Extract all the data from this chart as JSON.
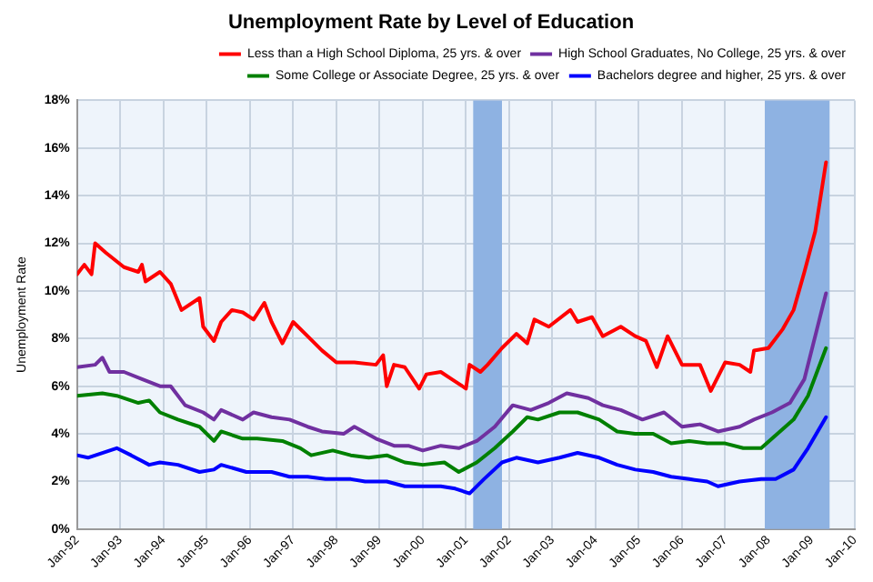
{
  "chart_data": {
    "type": "line",
    "title": "Unemployment Rate by Level of Education",
    "ylabel": "Unemployment Rate",
    "xlim": [
      "1992-01",
      "2010-01"
    ],
    "xticks": [
      {
        "value": "1992-01",
        "label": "Jan-92"
      },
      {
        "value": "1993-01",
        "label": "Jan-93"
      },
      {
        "value": "1994-01",
        "label": "Jan-94"
      },
      {
        "value": "1995-01",
        "label": "Jan-95"
      },
      {
        "value": "1996-01",
        "label": "Jan-96"
      },
      {
        "value": "1997-01",
        "label": "Jan-97"
      },
      {
        "value": "1998-01",
        "label": "Jan-98"
      },
      {
        "value": "1999-01",
        "label": "Jan-99"
      },
      {
        "value": "2000-01",
        "label": "Jan-00"
      },
      {
        "value": "2001-01",
        "label": "Jan-01"
      },
      {
        "value": "2002-01",
        "label": "Jan-02"
      },
      {
        "value": "2003-01",
        "label": "Jan-03"
      },
      {
        "value": "2004-01",
        "label": "Jan-04"
      },
      {
        "value": "2005-01",
        "label": "Jan-05"
      },
      {
        "value": "2006-01",
        "label": "Jan-06"
      },
      {
        "value": "2007-01",
        "label": "Jan-07"
      },
      {
        "value": "2008-01",
        "label": "Jan-08"
      },
      {
        "value": "2009-01",
        "label": "Jan-09"
      },
      {
        "value": "2010-01",
        "label": "Jan-10"
      }
    ],
    "ylim": [
      0,
      18
    ],
    "yticks": [
      {
        "value": 0,
        "label": "0%"
      },
      {
        "value": 2,
        "label": "2%"
      },
      {
        "value": 4,
        "label": "4%"
      },
      {
        "value": 6,
        "label": "6%"
      },
      {
        "value": 8,
        "label": "8%"
      },
      {
        "value": 10,
        "label": "10%"
      },
      {
        "value": 12,
        "label": "12%"
      },
      {
        "value": 14,
        "label": "14%"
      },
      {
        "value": 16,
        "label": "16%"
      },
      {
        "value": 18,
        "label": "18%"
      }
    ],
    "grid": true,
    "legend": "top right",
    "marker": "none",
    "line_style": "solid",
    "bands": [
      {
        "axis": "x",
        "from": "2001-03",
        "to": "2001-11",
        "color": "#8eb2e2"
      },
      {
        "axis": "x",
        "from": "2007-12",
        "to": "2009-06",
        "color": "#8eb2e2"
      }
    ],
    "series": [
      {
        "name": "Less than a High School Diploma, 25 yrs. & over",
        "color": "#ff0000",
        "x": [
          "1992-01",
          "1992-03",
          "1992-05",
          "1992-06",
          "1992-09",
          "1993-02",
          "1993-06",
          "1993-07",
          "1993-08",
          "1993-12",
          "1994-03",
          "1994-06",
          "1994-11",
          "1994-12",
          "1995-03",
          "1995-05",
          "1995-08",
          "1995-11",
          "1996-02",
          "1996-05",
          "1996-07",
          "1996-10",
          "1997-01",
          "1997-05",
          "1997-09",
          "1998-01",
          "1998-06",
          "1998-12",
          "1999-02",
          "1999-03",
          "1999-05",
          "1999-08",
          "1999-12",
          "2000-02",
          "2000-06",
          "2000-09",
          "2001-01",
          "2001-02",
          "2001-05",
          "2001-07",
          "2001-11",
          "2002-03",
          "2002-06",
          "2002-08",
          "2002-12",
          "2003-06",
          "2003-08",
          "2003-12",
          "2004-03",
          "2004-08",
          "2004-12",
          "2005-03",
          "2005-06",
          "2005-09",
          "2006-01",
          "2006-06",
          "2006-09",
          "2007-01",
          "2007-05",
          "2007-08",
          "2007-09",
          "2008-01",
          "2008-05",
          "2008-08",
          "2008-11",
          "2009-02",
          "2009-05"
        ],
        "values": [
          10.7,
          11.1,
          10.7,
          12.0,
          11.6,
          11.0,
          10.8,
          11.1,
          10.4,
          10.8,
          10.3,
          9.2,
          9.7,
          8.5,
          7.9,
          8.7,
          9.2,
          9.1,
          8.8,
          9.5,
          8.7,
          7.8,
          8.7,
          8.1,
          7.5,
          7.0,
          7.0,
          6.9,
          7.3,
          6.0,
          6.9,
          6.8,
          5.9,
          6.5,
          6.6,
          6.3,
          5.9,
          6.9,
          6.6,
          6.9,
          7.6,
          8.2,
          7.8,
          8.8,
          8.5,
          9.2,
          8.7,
          8.9,
          8.1,
          8.5,
          8.1,
          7.9,
          6.8,
          8.1,
          6.9,
          6.9,
          5.8,
          7.0,
          6.9,
          6.6,
          7.5,
          7.6,
          8.4,
          9.2,
          10.8,
          12.5,
          15.4
        ]
      },
      {
        "name": "High School Graduates, No College, 25 yrs. & over",
        "color": "#7030a0",
        "x": [
          "1992-01",
          "1992-06",
          "1992-08",
          "1992-10",
          "1993-02",
          "1993-07",
          "1993-12",
          "1994-03",
          "1994-07",
          "1994-12",
          "1995-03",
          "1995-05",
          "1995-11",
          "1996-02",
          "1996-07",
          "1996-12",
          "1997-05",
          "1997-09",
          "1998-03",
          "1998-06",
          "1998-12",
          "1999-05",
          "1999-09",
          "2000-01",
          "2000-06",
          "2000-11",
          "2001-04",
          "2001-09",
          "2002-02",
          "2002-07",
          "2002-12",
          "2003-05",
          "2003-11",
          "2004-03",
          "2004-08",
          "2005-02",
          "2005-08",
          "2006-01",
          "2006-06",
          "2006-11",
          "2007-05",
          "2007-09",
          "2008-02",
          "2008-07",
          "2008-11",
          "2009-05"
        ],
        "values": [
          6.8,
          6.9,
          7.2,
          6.6,
          6.6,
          6.3,
          6.0,
          6.0,
          5.2,
          4.9,
          4.6,
          5.0,
          4.6,
          4.9,
          4.7,
          4.6,
          4.3,
          4.1,
          4.0,
          4.3,
          3.8,
          3.5,
          3.5,
          3.3,
          3.5,
          3.4,
          3.7,
          4.3,
          5.2,
          5.0,
          5.3,
          5.7,
          5.5,
          5.2,
          5.0,
          4.6,
          4.9,
          4.3,
          4.4,
          4.1,
          4.3,
          4.6,
          4.9,
          5.3,
          6.3,
          9.9
        ]
      },
      {
        "name": "Some College or Associate Degree, 25 yrs. & over",
        "color": "#008000",
        "x": [
          "1992-01",
          "1992-08",
          "1992-12",
          "1993-06",
          "1993-09",
          "1993-12",
          "1994-05",
          "1994-11",
          "1995-03",
          "1995-05",
          "1995-11",
          "1996-03",
          "1996-10",
          "1997-03",
          "1997-06",
          "1997-12",
          "1998-05",
          "1998-10",
          "1999-03",
          "1999-08",
          "2000-01",
          "2000-07",
          "2000-11",
          "2001-04",
          "2001-09",
          "2002-02",
          "2002-06",
          "2002-09",
          "2003-03",
          "2003-08",
          "2004-02",
          "2004-07",
          "2004-12",
          "2005-05",
          "2005-10",
          "2006-03",
          "2006-08",
          "2007-01",
          "2007-06",
          "2007-11",
          "2008-02",
          "2008-08",
          "2008-12",
          "2009-05"
        ],
        "values": [
          5.6,
          5.7,
          5.6,
          5.3,
          5.4,
          4.9,
          4.6,
          4.3,
          3.7,
          4.1,
          3.8,
          3.8,
          3.7,
          3.4,
          3.1,
          3.3,
          3.1,
          3.0,
          3.1,
          2.8,
          2.7,
          2.8,
          2.4,
          2.8,
          3.4,
          4.1,
          4.7,
          4.6,
          4.9,
          4.9,
          4.6,
          4.1,
          4.0,
          4.0,
          3.6,
          3.7,
          3.6,
          3.6,
          3.4,
          3.4,
          3.8,
          4.6,
          5.6,
          7.6
        ]
      },
      {
        "name": "Bachelors degree and higher, 25 yrs. & over",
        "color": "#0000ff",
        "x": [
          "1992-01",
          "1992-04",
          "1992-12",
          "1993-04",
          "1993-09",
          "1993-12",
          "1994-05",
          "1994-11",
          "1995-03",
          "1995-05",
          "1995-12",
          "1996-07",
          "1996-12",
          "1997-05",
          "1997-10",
          "1998-05",
          "1998-09",
          "1999-03",
          "1999-08",
          "2000-01",
          "2000-06",
          "2000-10",
          "2001-02",
          "2001-06",
          "2001-11",
          "2002-03",
          "2002-09",
          "2003-03",
          "2003-08",
          "2004-02",
          "2004-07",
          "2004-12",
          "2005-05",
          "2005-10",
          "2006-03",
          "2006-08",
          "2006-11",
          "2007-05",
          "2007-11",
          "2008-03",
          "2008-08",
          "2008-12",
          "2009-05"
        ],
        "values": [
          3.1,
          3.0,
          3.4,
          3.1,
          2.7,
          2.8,
          2.7,
          2.4,
          2.5,
          2.7,
          2.4,
          2.4,
          2.2,
          2.2,
          2.1,
          2.1,
          2.0,
          2.0,
          1.8,
          1.8,
          1.8,
          1.7,
          1.5,
          2.1,
          2.8,
          3.0,
          2.8,
          3.0,
          3.2,
          3.0,
          2.7,
          2.5,
          2.4,
          2.2,
          2.1,
          2.0,
          1.8,
          2.0,
          2.1,
          2.1,
          2.5,
          3.4,
          4.7
        ]
      }
    ]
  }
}
